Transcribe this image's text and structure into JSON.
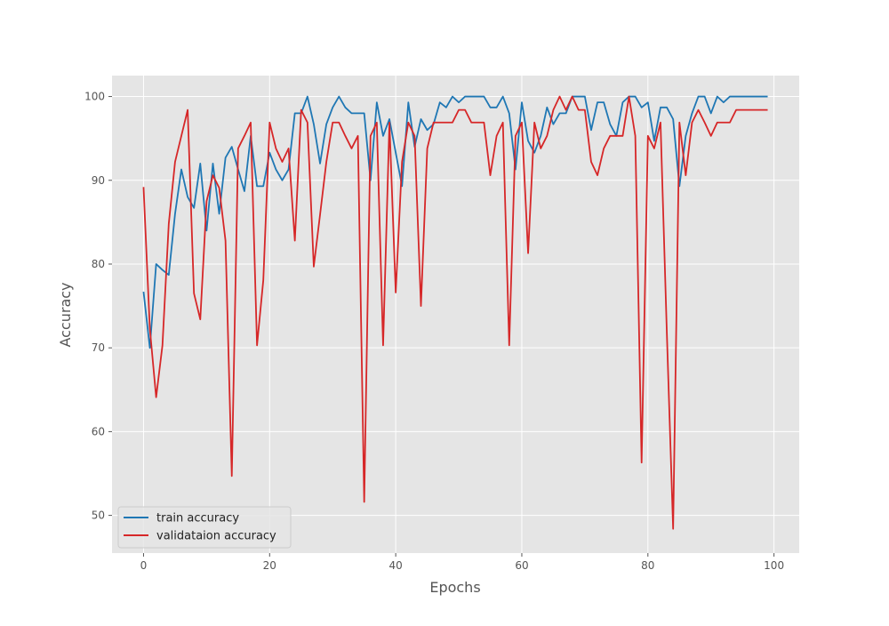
{
  "chart_data": {
    "type": "line",
    "title": "",
    "xlabel": "Epochs",
    "ylabel": "Accuracy",
    "xlim": [
      -5,
      104
    ],
    "ylim": [
      45.5,
      102.5
    ],
    "xticks": [
      0,
      20,
      40,
      60,
      80,
      100
    ],
    "yticks": [
      50,
      60,
      70,
      80,
      90,
      100
    ],
    "grid": true,
    "legend_position": "lower-left",
    "background_color": "#e5e5e5",
    "grid_color": "#ffffff",
    "series": [
      {
        "name": "train accuracy",
        "color": "#1f77b4",
        "x": [
          0,
          1,
          2,
          3,
          4,
          5,
          6,
          7,
          8,
          9,
          10,
          11,
          12,
          13,
          14,
          15,
          16,
          17,
          18,
          19,
          20,
          21,
          22,
          23,
          24,
          25,
          26,
          27,
          28,
          29,
          30,
          31,
          32,
          33,
          34,
          35,
          36,
          37,
          38,
          39,
          40,
          41,
          42,
          43,
          44,
          45,
          46,
          47,
          48,
          49,
          50,
          51,
          52,
          53,
          54,
          55,
          56,
          57,
          58,
          59,
          60,
          61,
          62,
          63,
          64,
          65,
          66,
          67,
          68,
          69,
          70,
          71,
          72,
          73,
          74,
          75,
          76,
          77,
          78,
          79,
          80,
          81,
          82,
          83,
          84,
          85,
          86,
          87,
          88,
          89,
          90,
          91,
          92,
          93,
          94,
          95,
          96,
          97,
          98,
          99
        ],
        "values": [
          76.7,
          70.0,
          80.0,
          79.3,
          78.7,
          86.0,
          91.3,
          88.0,
          86.7,
          92.0,
          84.0,
          92.0,
          86.0,
          92.7,
          94.0,
          91.3,
          88.7,
          95.3,
          89.3,
          89.3,
          93.3,
          91.3,
          90.0,
          91.3,
          98.0,
          98.0,
          100.0,
          96.7,
          92.0,
          96.7,
          98.7,
          100.0,
          98.7,
          98.0,
          98.0,
          98.0,
          90.0,
          99.3,
          95.3,
          97.3,
          93.3,
          89.3,
          99.3,
          94.0,
          97.3,
          96.0,
          96.7,
          99.3,
          98.7,
          100.0,
          99.3,
          100.0,
          100.0,
          100.0,
          100.0,
          98.7,
          98.7,
          100.0,
          98.0,
          91.3,
          99.3,
          94.7,
          93.3,
          95.3,
          98.7,
          96.7,
          98.0,
          98.0,
          100.0,
          100.0,
          100.0,
          96.0,
          99.3,
          99.3,
          96.7,
          95.3,
          99.3,
          100.0,
          100.0,
          98.7,
          99.3,
          94.7,
          98.7,
          98.7,
          97.3,
          89.3,
          95.3,
          98.0,
          100.0,
          100.0,
          98.0,
          100.0,
          99.3,
          100.0,
          100.0,
          100.0,
          100.0,
          100.0,
          100.0,
          100.0
        ]
      },
      {
        "name": "validataion accuracy",
        "color": "#d62728",
        "x": [
          0,
          1,
          2,
          3,
          4,
          5,
          6,
          7,
          8,
          9,
          10,
          11,
          12,
          13,
          14,
          15,
          16,
          17,
          18,
          19,
          20,
          21,
          22,
          23,
          24,
          25,
          26,
          27,
          28,
          29,
          30,
          31,
          32,
          33,
          34,
          35,
          36,
          37,
          38,
          39,
          40,
          41,
          42,
          43,
          44,
          45,
          46,
          47,
          48,
          49,
          50,
          51,
          52,
          53,
          54,
          55,
          56,
          57,
          58,
          59,
          60,
          61,
          62,
          63,
          64,
          65,
          66,
          67,
          68,
          69,
          70,
          71,
          72,
          73,
          74,
          75,
          76,
          77,
          78,
          79,
          80,
          81,
          82,
          83,
          84,
          85,
          86,
          87,
          88,
          89,
          90,
          91,
          92,
          93,
          94,
          95,
          96,
          97,
          98,
          99
        ],
        "values": [
          89.2,
          72.3,
          64.1,
          70.3,
          84.8,
          92.2,
          95.3,
          98.4,
          76.5,
          73.4,
          87.5,
          90.6,
          89.1,
          82.8,
          54.7,
          93.8,
          95.3,
          96.9,
          70.3,
          78.1,
          96.9,
          93.8,
          92.2,
          93.8,
          82.8,
          98.4,
          96.9,
          79.7,
          85.9,
          92.2,
          96.9,
          96.9,
          95.3,
          93.8,
          95.3,
          51.6,
          95.3,
          96.9,
          70.3,
          96.9,
          76.6,
          92.2,
          96.9,
          95.3,
          75.0,
          93.8,
          96.9,
          96.9,
          96.9,
          96.9,
          98.4,
          98.4,
          96.9,
          96.9,
          96.9,
          90.6,
          95.3,
          96.9,
          70.3,
          95.3,
          96.9,
          81.3,
          96.9,
          93.8,
          95.3,
          98.4,
          100.0,
          98.4,
          100.0,
          98.4,
          98.4,
          92.2,
          90.6,
          93.8,
          95.3,
          95.3,
          95.3,
          100.0,
          95.3,
          56.3,
          95.3,
          93.8,
          96.9,
          71.9,
          48.4,
          96.9,
          90.6,
          96.9,
          98.4,
          96.9,
          95.3,
          96.9,
          96.9,
          96.9,
          98.4,
          98.4,
          98.4,
          98.4,
          98.4,
          98.4
        ]
      }
    ]
  }
}
